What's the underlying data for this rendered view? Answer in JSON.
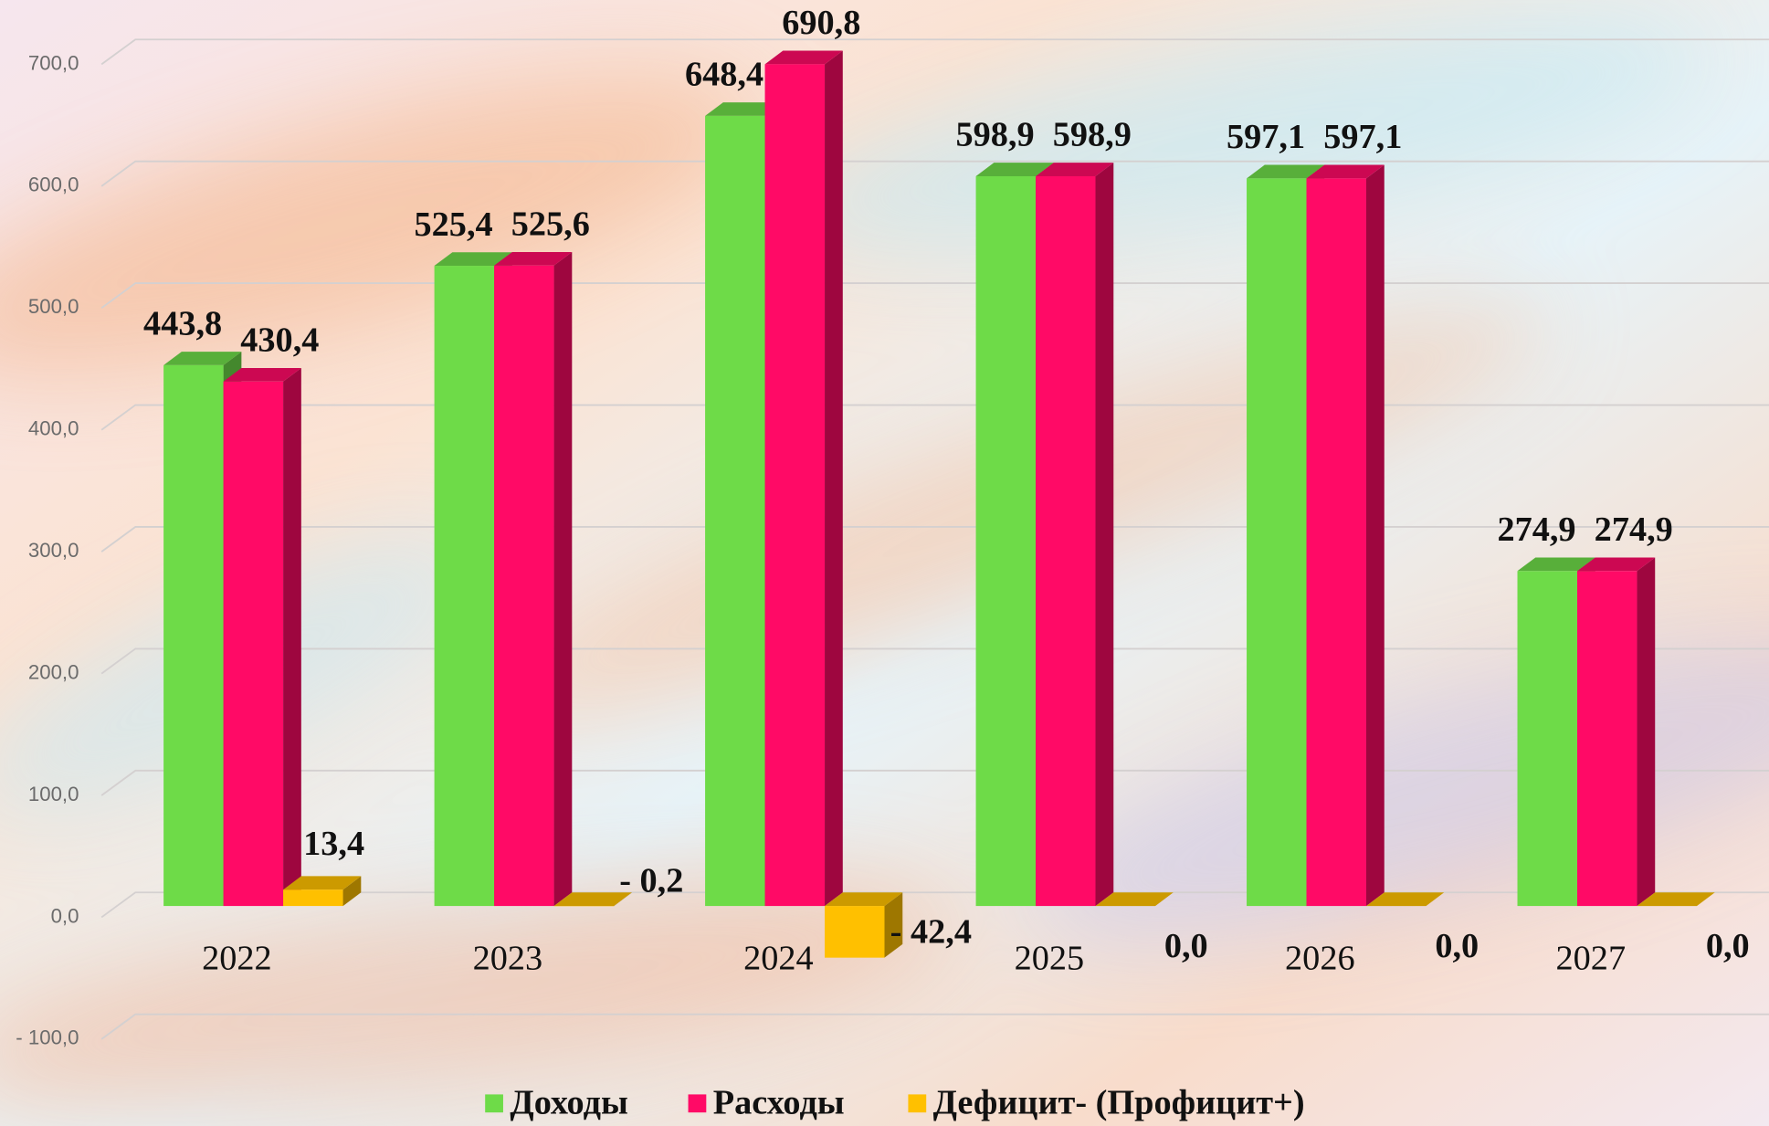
{
  "chart_data": {
    "type": "bar3d",
    "categories": [
      "2022",
      "2023",
      "2024",
      "2025",
      "2026",
      "2027"
    ],
    "series": [
      {
        "name": "Доходы",
        "color": "#6edb48",
        "values": [
          443.8,
          525.4,
          648.4,
          598.9,
          597.1,
          274.9
        ],
        "value_labels": [
          "443,8",
          "525,4",
          "648,4",
          "598,9",
          "597,1",
          "274,9"
        ]
      },
      {
        "name": "Расходы",
        "color": "#ff0a66",
        "values": [
          430.4,
          525.6,
          690.8,
          598.9,
          597.1,
          274.9
        ],
        "value_labels": [
          "430,4",
          "525,6",
          "690,8",
          "598,9",
          "597,1",
          "274,9"
        ]
      },
      {
        "name": "Дефицит- (Профицит+)",
        "color": "#ffc000",
        "values": [
          13.4,
          -0.2,
          -42.4,
          0.0,
          0.0,
          0.0
        ],
        "value_labels": [
          "13,4",
          "- 0,2",
          "- 42,4",
          "0,0",
          "0,0",
          "0,0"
        ]
      }
    ],
    "ylim": [
      -100,
      700
    ],
    "yticks": [
      {
        "value": -100,
        "label": "- 100,0"
      },
      {
        "value": 0,
        "label": "0,0"
      },
      {
        "value": 100,
        "label": "100,0"
      },
      {
        "value": 200,
        "label": "200,0"
      },
      {
        "value": 300,
        "label": "300,0"
      },
      {
        "value": 400,
        "label": "400,0"
      },
      {
        "value": 500,
        "label": "500,0"
      },
      {
        "value": 600,
        "label": "600,0"
      },
      {
        "value": 700,
        "label": "700,0"
      }
    ],
    "grid": true,
    "legend": "bottom"
  }
}
